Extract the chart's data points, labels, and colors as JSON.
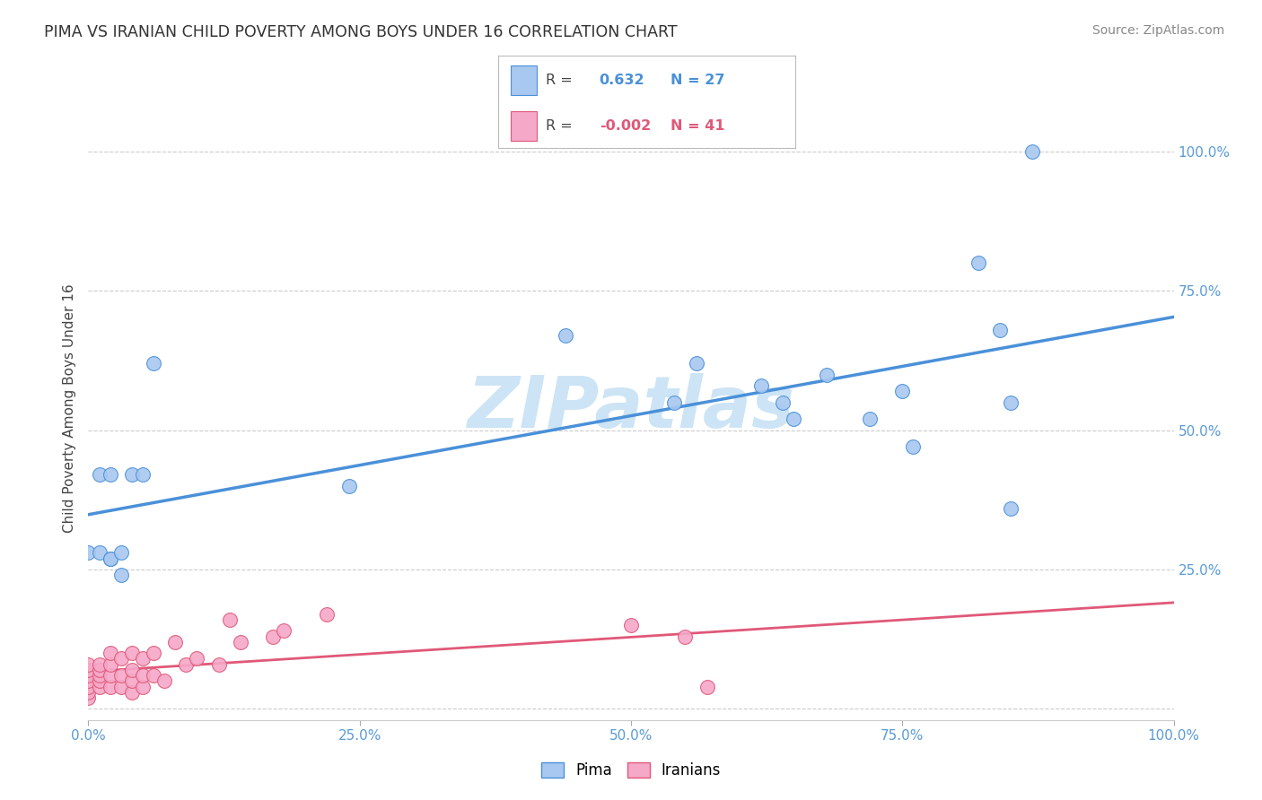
{
  "title": "PIMA VS IRANIAN CHILD POVERTY AMONG BOYS UNDER 16 CORRELATION CHART",
  "source": "Source: ZipAtlas.com",
  "ylabel": "Child Poverty Among Boys Under 16",
  "pima_R": 0.632,
  "pima_N": 27,
  "iranian_R": -0.002,
  "iranian_N": 41,
  "pima_color": "#a8c8f0",
  "pima_line_color": "#4a90d9",
  "iranian_color": "#f5a8c8",
  "iranian_line_color": "#e05878",
  "background_color": "#ffffff",
  "grid_color": "#cccccc",
  "watermark_color": "#cce4f5",
  "right_axis_color": "#5b9bd5",
  "pima_x": [
    0.0,
    0.01,
    0.01,
    0.02,
    0.02,
    0.02,
    0.03,
    0.03,
    0.04,
    0.05,
    0.06,
    0.24,
    0.44,
    0.54,
    0.56,
    0.62,
    0.64,
    0.65,
    0.68,
    0.72,
    0.75,
    0.76,
    0.82,
    0.84,
    0.85,
    0.85,
    0.87
  ],
  "pima_y": [
    0.28,
    0.42,
    0.28,
    0.42,
    0.27,
    0.27,
    0.28,
    0.24,
    0.42,
    0.42,
    0.62,
    0.4,
    0.67,
    0.55,
    0.62,
    0.58,
    0.55,
    0.52,
    0.6,
    0.52,
    0.57,
    0.47,
    0.8,
    0.68,
    0.55,
    0.36,
    1.0
  ],
  "iranian_x": [
    0.0,
    0.0,
    0.0,
    0.0,
    0.0,
    0.0,
    0.0,
    0.01,
    0.01,
    0.01,
    0.01,
    0.01,
    0.02,
    0.02,
    0.02,
    0.02,
    0.03,
    0.03,
    0.03,
    0.04,
    0.04,
    0.04,
    0.04,
    0.05,
    0.05,
    0.05,
    0.06,
    0.06,
    0.07,
    0.08,
    0.09,
    0.1,
    0.12,
    0.13,
    0.14,
    0.17,
    0.18,
    0.22,
    0.5,
    0.55,
    0.57
  ],
  "iranian_y": [
    0.02,
    0.03,
    0.04,
    0.05,
    0.06,
    0.07,
    0.08,
    0.04,
    0.05,
    0.06,
    0.07,
    0.08,
    0.04,
    0.06,
    0.08,
    0.1,
    0.04,
    0.06,
    0.09,
    0.03,
    0.05,
    0.07,
    0.1,
    0.04,
    0.06,
    0.09,
    0.06,
    0.1,
    0.05,
    0.12,
    0.08,
    0.09,
    0.08,
    0.16,
    0.12,
    0.13,
    0.14,
    0.17,
    0.15,
    0.13,
    0.04
  ],
  "ylim": [
    -0.02,
    1.1
  ],
  "xlim": [
    0.0,
    1.0
  ],
  "yticks": [
    0.0,
    0.25,
    0.5,
    0.75,
    1.0
  ],
  "ytick_labels": [
    "",
    "25.0%",
    "50.0%",
    "75.0%",
    "100.0%"
  ],
  "xticks": [
    0.0,
    0.25,
    0.5,
    0.75,
    1.0
  ],
  "xtick_labels": [
    "0.0%",
    "25.0%",
    "50.0%",
    "75.0%",
    "100.0%"
  ]
}
